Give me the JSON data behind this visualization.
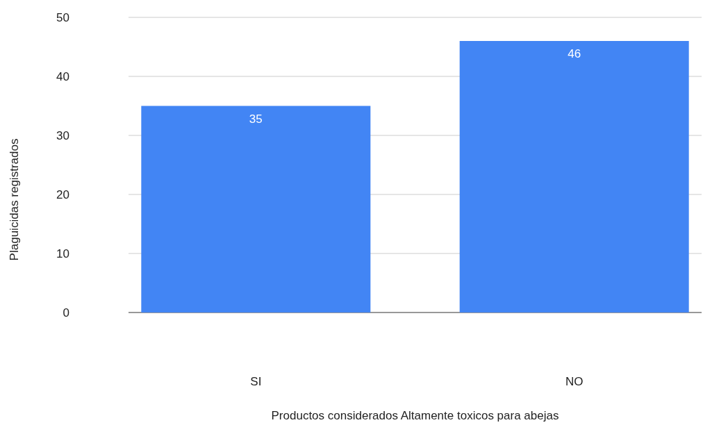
{
  "chart_data": {
    "type": "bar",
    "xlabel": "Productos considerados Altamente toxicos para abejas",
    "ylabel": "Plaguicidas registrados",
    "categories": [
      "SI",
      "NO"
    ],
    "values": [
      35,
      46
    ],
    "color": "#4285f4",
    "ylim": [
      0,
      50
    ],
    "yticks": [
      0,
      10,
      20,
      30,
      40,
      50
    ],
    "grid": "y",
    "data_labels": true
  }
}
